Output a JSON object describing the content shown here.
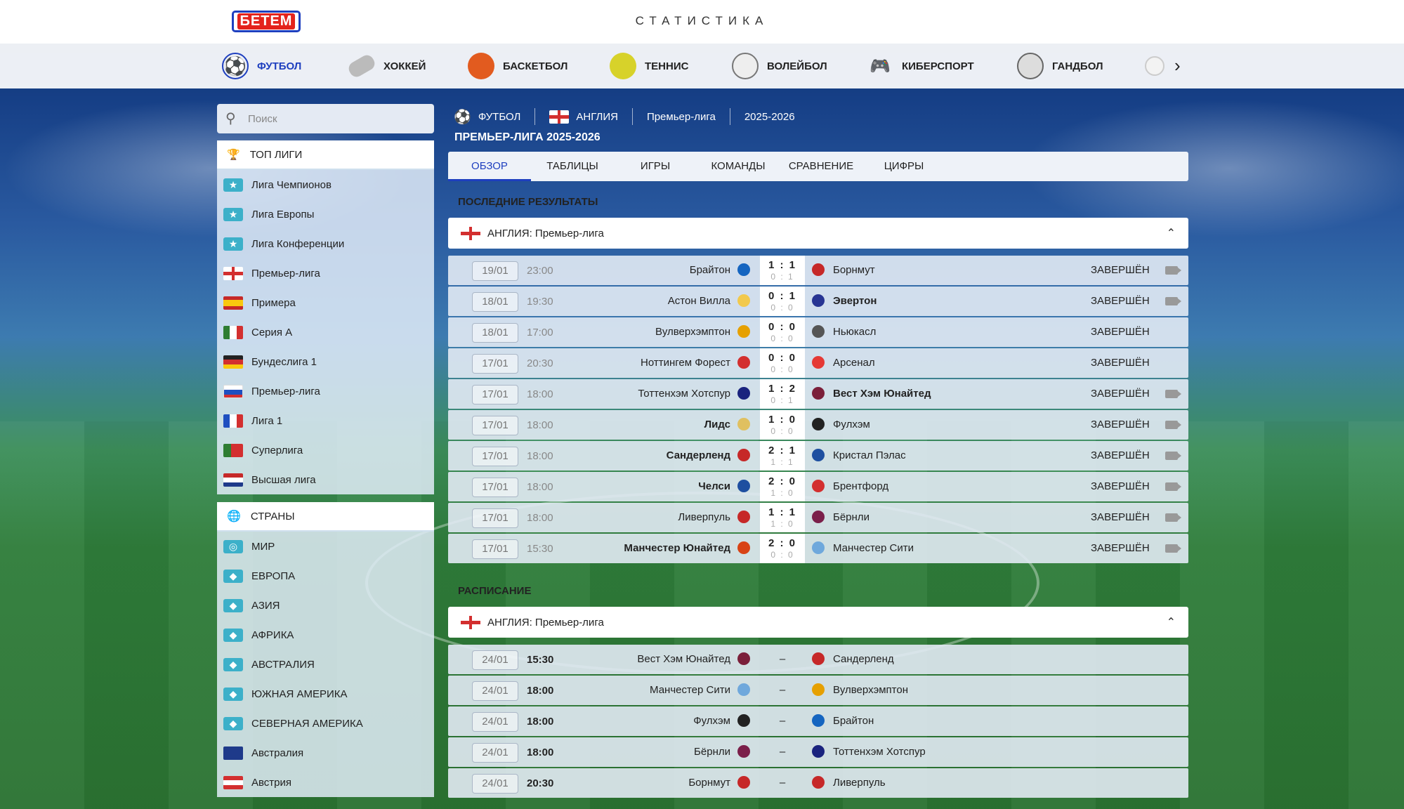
{
  "header": {
    "logo_text": "БЕТЕМ",
    "title": "СТАТИСТИКА"
  },
  "sports": [
    {
      "name": "ФУТБОЛ",
      "icon": "soccer-ball-icon",
      "active": true
    },
    {
      "name": "ХОККЕЙ",
      "icon": "hockey-puck-icon"
    },
    {
      "name": "БАСКЕТБОЛ",
      "icon": "basketball-icon"
    },
    {
      "name": "ТЕННИС",
      "icon": "tennis-ball-icon"
    },
    {
      "name": "ВОЛЕЙБОЛ",
      "icon": "volleyball-icon"
    },
    {
      "name": "КИБЕРСПОРТ",
      "icon": "gamepad-icon"
    },
    {
      "name": "ГАНДБОЛ",
      "icon": "handball-icon"
    }
  ],
  "search": {
    "placeholder": "Поиск"
  },
  "top_leagues": {
    "header": "ТОП ЛИГИ",
    "items": [
      {
        "label": "Лига Чемпионов",
        "flag": "trophy"
      },
      {
        "label": "Лига Европы",
        "flag": "trophy"
      },
      {
        "label": "Лига Конференции",
        "flag": "trophy"
      },
      {
        "label": "Премьер-лига",
        "flag": "england"
      },
      {
        "label": "Примера",
        "flag": "spain"
      },
      {
        "label": "Серия А",
        "flag": "italy"
      },
      {
        "label": "Бундеслига 1",
        "flag": "germany"
      },
      {
        "label": "Премьер-лига",
        "flag": "russia"
      },
      {
        "label": "Лига 1",
        "flag": "france"
      },
      {
        "label": "Суперлига",
        "flag": "portugal"
      },
      {
        "label": "Высшая лига",
        "flag": "netherlands"
      }
    ]
  },
  "countries": {
    "header": "СТРАНЫ",
    "items": [
      {
        "label": "МИР",
        "flag": "globe"
      },
      {
        "label": "ЕВРОПА",
        "flag": "continent"
      },
      {
        "label": "АЗИЯ",
        "flag": "continent"
      },
      {
        "label": "АФРИКА",
        "flag": "continent"
      },
      {
        "label": "АВСТРАЛИЯ",
        "flag": "continent"
      },
      {
        "label": "ЮЖНАЯ АМЕРИКА",
        "flag": "continent"
      },
      {
        "label": "СЕВЕРНАЯ АМЕРИКА",
        "flag": "continent"
      },
      {
        "label": "Австралия",
        "flag": "australia"
      },
      {
        "label": "Австрия",
        "flag": "austria"
      }
    ]
  },
  "breadcrumbs": [
    "ФУТБОЛ",
    "АНГЛИЯ",
    "Премьер-лига",
    "2025-2026"
  ],
  "league_title": "ПРЕМЬЕР-ЛИГА 2025-2026",
  "tabs": [
    "ОБЗОР",
    "ТАБЛИЦЫ",
    "ИГРЫ",
    "КОМАНДЫ",
    "СРАВНЕНИЕ",
    "ЦИФРЫ"
  ],
  "results": {
    "title": "ПОСЛЕДНИЕ РЕЗУЛЬТАТЫ",
    "league": "АНГЛИЯ: Премьер-лига",
    "matches": [
      {
        "date": "19/01",
        "time": "23:00",
        "home": "Брайтон",
        "away": "Борнмут",
        "score": "1 : 1",
        "half": "0 : 1",
        "status": "ЗАВЕРШЁН",
        "video": true,
        "winner": "",
        "hc": "#1565c0",
        "ac": "#c62828"
      },
      {
        "date": "18/01",
        "time": "19:30",
        "home": "Астон Вилла",
        "away": "Эвертон",
        "score": "0 : 1",
        "half": "0 : 0",
        "status": "ЗАВЕРШЁН",
        "video": true,
        "winner": "away",
        "hc": "#f2c94c",
        "ac": "#283593"
      },
      {
        "date": "18/01",
        "time": "17:00",
        "home": "Вулверхэмптон",
        "away": "Ньюкасл",
        "score": "0 : 0",
        "half": "0 : 0",
        "status": "ЗАВЕРШЁН",
        "video": false,
        "winner": "",
        "hc": "#e6a000",
        "ac": "#555555"
      },
      {
        "date": "17/01",
        "time": "20:30",
        "home": "Ноттингем Форест",
        "away": "Арсенал",
        "score": "0 : 0",
        "half": "0 : 0",
        "status": "ЗАВЕРШЁН",
        "video": false,
        "winner": "",
        "hc": "#d32f2f",
        "ac": "#e53935"
      },
      {
        "date": "17/01",
        "time": "18:00",
        "home": "Тоттенхэм Хотспур",
        "away": "Вест Хэм Юнайтед",
        "score": "1 : 2",
        "half": "0 : 1",
        "status": "ЗАВЕРШЁН",
        "video": true,
        "winner": "away",
        "hc": "#1a237e",
        "ac": "#7b1f3a"
      },
      {
        "date": "17/01",
        "time": "18:00",
        "home": "Лидс",
        "away": "Фулхэм",
        "score": "1 : 0",
        "half": "0 : 0",
        "status": "ЗАВЕРШЁН",
        "video": true,
        "winner": "home",
        "hc": "#e0c060",
        "ac": "#222222"
      },
      {
        "date": "17/01",
        "time": "18:00",
        "home": "Сандерленд",
        "away": "Кристал Пэлас",
        "score": "2 : 1",
        "half": "1 : 1",
        "status": "ЗАВЕРШЁН",
        "video": true,
        "winner": "home",
        "hc": "#c62828",
        "ac": "#1e4fa0"
      },
      {
        "date": "17/01",
        "time": "18:00",
        "home": "Челси",
        "away": "Брентфорд",
        "score": "2 : 0",
        "half": "1 : 0",
        "status": "ЗАВЕРШЁН",
        "video": true,
        "winner": "home",
        "hc": "#1e4fa0",
        "ac": "#d32f2f"
      },
      {
        "date": "17/01",
        "time": "18:00",
        "home": "Ливерпуль",
        "away": "Бёрнли",
        "score": "1 : 1",
        "half": "1 : 0",
        "status": "ЗАВЕРШЁН",
        "video": true,
        "winner": "",
        "hc": "#c62828",
        "ac": "#7b1f4a"
      },
      {
        "date": "17/01",
        "time": "15:30",
        "home": "Манчестер Юнайтед",
        "away": "Манчестер Сити",
        "score": "2 : 0",
        "half": "0 : 0",
        "status": "ЗАВЕРШЁН",
        "video": true,
        "winner": "home",
        "hc": "#d84315",
        "ac": "#6fa8dc"
      }
    ]
  },
  "schedule": {
    "title": "РАСПИСАНИЕ",
    "league": "АНГЛИЯ: Премьер-лига",
    "matches": [
      {
        "date": "24/01",
        "time": "15:30",
        "home": "Вест Хэм Юнайтед",
        "away": "Сандерленд",
        "dash": "–",
        "hc": "#7b1f3a",
        "ac": "#c62828"
      },
      {
        "date": "24/01",
        "time": "18:00",
        "home": "Манчестер Сити",
        "away": "Вулверхэмптон",
        "dash": "–",
        "hc": "#6fa8dc",
        "ac": "#e6a000"
      },
      {
        "date": "24/01",
        "time": "18:00",
        "home": "Фулхэм",
        "away": "Брайтон",
        "dash": "–",
        "hc": "#222222",
        "ac": "#1565c0"
      },
      {
        "date": "24/01",
        "time": "18:00",
        "home": "Бёрнли",
        "away": "Тоттенхэм Хотспур",
        "dash": "–",
        "hc": "#7b1f4a",
        "ac": "#1a237e"
      },
      {
        "date": "24/01",
        "time": "20:30",
        "home": "Борнмут",
        "away": "Ливерпуль",
        "dash": "–",
        "hc": "#c62828",
        "ac": "#c62828"
      }
    ]
  }
}
